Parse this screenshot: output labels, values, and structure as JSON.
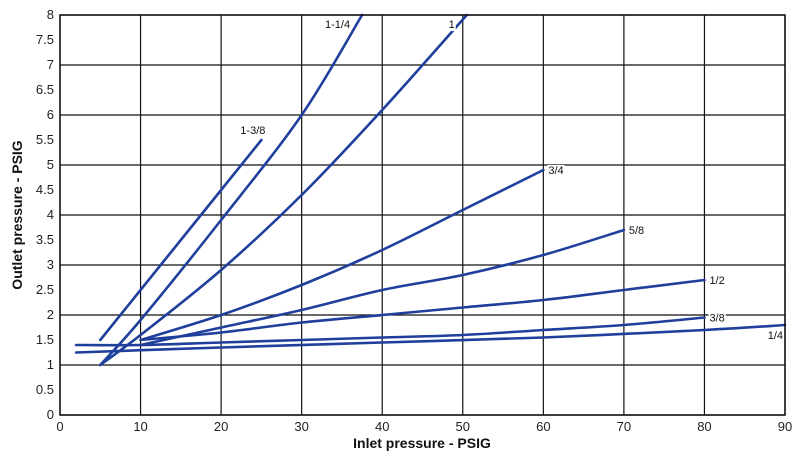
{
  "chart_data": {
    "type": "line",
    "xlabel": "Inlet pressure - PSIG",
    "ylabel": "Outlet pressure - PSIG",
    "xlim": [
      0,
      90
    ],
    "ylim": [
      0,
      8
    ],
    "x_ticks": [
      "0",
      "10",
      "20",
      "30",
      "40",
      "50",
      "60",
      "70",
      "80",
      "90"
    ],
    "y_ticks": [
      "0",
      "0.5",
      "1",
      "1.5",
      "2",
      "2.5",
      "3",
      "3.5",
      "4",
      "4.5",
      "5",
      "5.5",
      "6",
      "6.5",
      "7",
      "7.5",
      "8"
    ],
    "grid": true,
    "line_color": "#1f3f9c",
    "series": [
      {
        "name": "1-1/4",
        "points": [
          [
            5,
            1.0
          ],
          [
            10,
            1.9
          ],
          [
            20,
            3.9
          ],
          [
            30,
            6.0
          ],
          [
            37.5,
            8.0
          ]
        ]
      },
      {
        "name": "1",
        "points": [
          [
            5,
            1.0
          ],
          [
            10,
            1.6
          ],
          [
            20,
            2.9
          ],
          [
            30,
            4.4
          ],
          [
            40,
            6.1
          ],
          [
            50.5,
            8.0
          ]
        ]
      },
      {
        "name": "1-3/8",
        "points": [
          [
            5,
            1.5
          ],
          [
            10,
            2.5
          ],
          [
            20,
            4.5
          ],
          [
            25,
            5.5
          ]
        ]
      },
      {
        "name": "3/4",
        "points": [
          [
            10,
            1.5
          ],
          [
            20,
            2.0
          ],
          [
            30,
            2.6
          ],
          [
            40,
            3.3
          ],
          [
            50,
            4.1
          ],
          [
            60,
            4.9
          ]
        ]
      },
      {
        "name": "5/8",
        "points": [
          [
            10,
            1.4
          ],
          [
            20,
            1.75
          ],
          [
            30,
            2.1
          ],
          [
            40,
            2.5
          ],
          [
            50,
            2.8
          ],
          [
            60,
            3.2
          ],
          [
            70,
            3.7
          ]
        ]
      },
      {
        "name": "1/2",
        "points": [
          [
            10,
            1.5
          ],
          [
            20,
            1.65
          ],
          [
            30,
            1.85
          ],
          [
            40,
            2.0
          ],
          [
            50,
            2.15
          ],
          [
            60,
            2.3
          ],
          [
            70,
            2.5
          ],
          [
            80,
            2.7
          ]
        ]
      },
      {
        "name": "3/8",
        "points": [
          [
            2,
            1.4
          ],
          [
            10,
            1.4
          ],
          [
            20,
            1.45
          ],
          [
            30,
            1.5
          ],
          [
            40,
            1.55
          ],
          [
            50,
            1.6
          ],
          [
            60,
            1.7
          ],
          [
            70,
            1.8
          ],
          [
            80,
            1.95
          ]
        ]
      },
      {
        "name": "1/4",
        "points": [
          [
            2,
            1.25
          ],
          [
            20,
            1.35
          ],
          [
            40,
            1.45
          ],
          [
            60,
            1.55
          ],
          [
            80,
            1.7
          ],
          [
            90,
            1.8
          ]
        ]
      }
    ]
  }
}
